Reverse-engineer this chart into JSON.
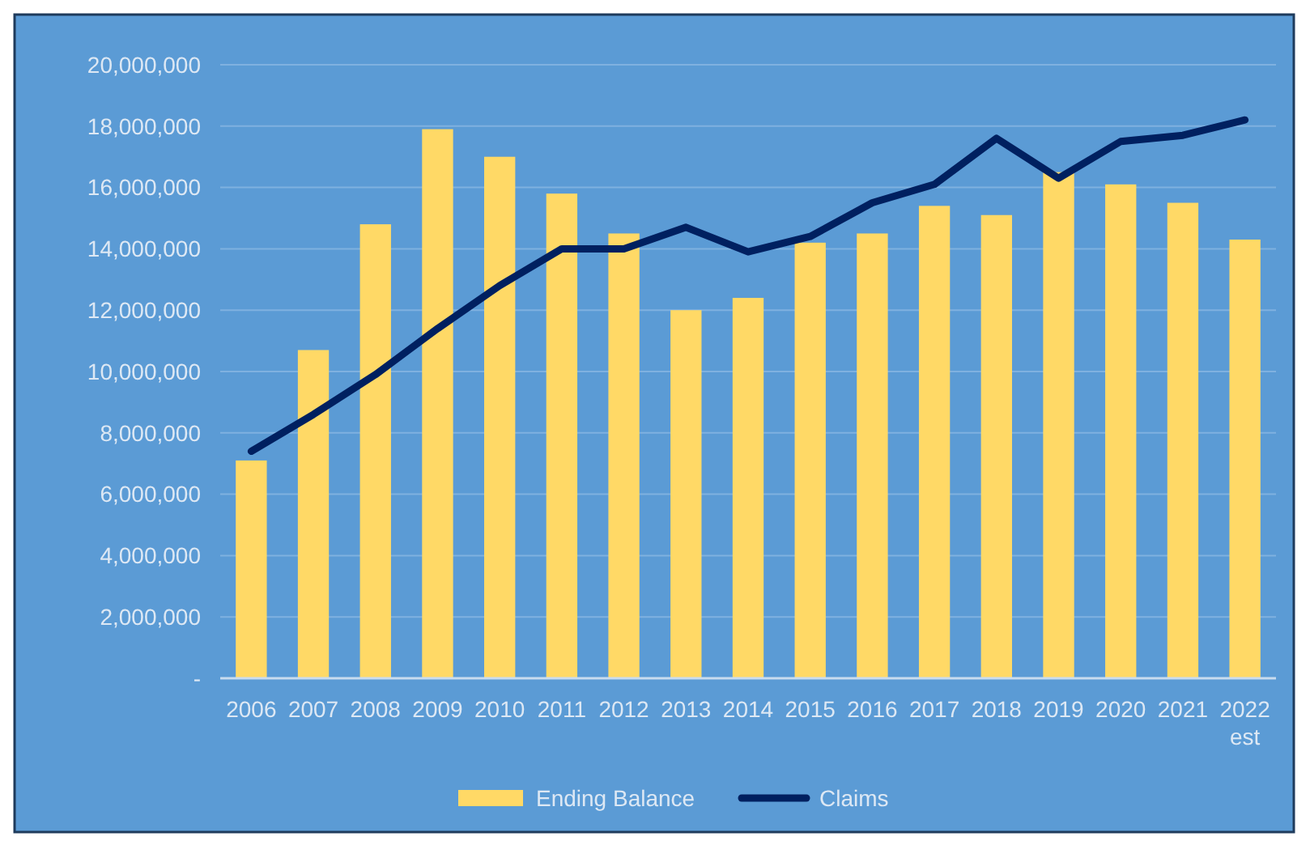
{
  "chart_data": {
    "type": "bar",
    "categories": [
      "2006",
      "2007",
      "2008",
      "2009",
      "2010",
      "2011",
      "2012",
      "2013",
      "2014",
      "2015",
      "2016",
      "2017",
      "2018",
      "2019",
      "2020",
      "2021",
      "2022\nest"
    ],
    "series": [
      {
        "name": "Ending Balance",
        "color": "#ffd966",
        "values": [
          7100000,
          10700000,
          14800000,
          17900000,
          17000000,
          15800000,
          14500000,
          12000000,
          12400000,
          14200000,
          14500000,
          15400000,
          15100000,
          16500000,
          16100000,
          15500000,
          14300000
        ]
      },
      {
        "name": "Claims",
        "type": "line",
        "color": "#002060",
        "values": [
          7400000,
          8600000,
          9900000,
          11400000,
          12800000,
          14000000,
          14000000,
          14700000,
          13900000,
          14400000,
          15500000,
          16100000,
          17600000,
          16300000,
          17500000,
          17700000,
          18200000
        ]
      }
    ],
    "ylim": [
      0,
      20000000
    ],
    "yticks": [
      {
        "value": 0,
        "label": "-"
      },
      {
        "value": 2000000,
        "label": "2,000,000"
      },
      {
        "value": 4000000,
        "label": "4,000,000"
      },
      {
        "value": 6000000,
        "label": "6,000,000"
      },
      {
        "value": 8000000,
        "label": "8,000,000"
      },
      {
        "value": 10000000,
        "label": "10,000,000"
      },
      {
        "value": 12000000,
        "label": "12,000,000"
      },
      {
        "value": 14000000,
        "label": "14,000,000"
      },
      {
        "value": 16000000,
        "label": "16,000,000"
      },
      {
        "value": 18000000,
        "label": "18,000,000"
      },
      {
        "value": 20000000,
        "label": "20,000,000"
      }
    ],
    "grid": "y",
    "legend": "bottom",
    "marker": "none",
    "line_style": "solid"
  }
}
